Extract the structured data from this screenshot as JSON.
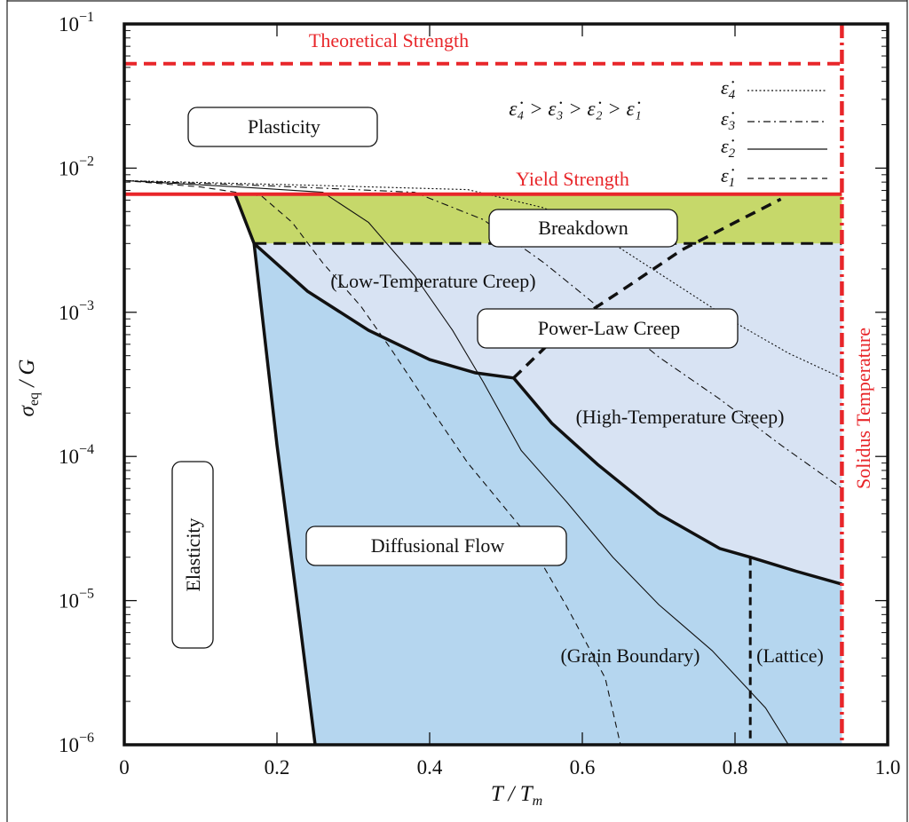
{
  "chart_data": {
    "type": "area",
    "title": "",
    "xlabel_main": "T / T",
    "xlabel_sub": "m",
    "ylabel_main": "σ",
    "ylabel_sub": "eq",
    "ylabel_tail": " / G",
    "x_scale": "linear",
    "y_scale": "log",
    "xlim": [
      0,
      1.0
    ],
    "ylim_exponents": [
      -6,
      -1
    ],
    "x_ticks": [
      0,
      0.2,
      0.4,
      0.6,
      0.8,
      1.0
    ],
    "x_tick_labels": [
      "0",
      "0.2",
      "0.4",
      "0.6",
      "0.8",
      "1.0"
    ],
    "y_ticks": [
      {
        "value": 1e-06,
        "base": "10",
        "exp": "−6"
      },
      {
        "value": 1e-05,
        "base": "10",
        "exp": "−5"
      },
      {
        "value": 0.0001,
        "base": "10",
        "exp": "−4"
      },
      {
        "value": 0.001,
        "base": "10",
        "exp": "−3"
      },
      {
        "value": 0.01,
        "base": "10",
        "exp": "−2"
      },
      {
        "value": 0.1,
        "base": "10",
        "exp": "−1"
      }
    ],
    "annotations": {
      "theoretical_strength": "Theoretical Strength",
      "yield_strength": "Yield Strength",
      "solidus_temperature": "Solidus Temperature",
      "plasticity": "Plasticity",
      "breakdown": "Breakdown",
      "low_temp_creep": "(Low-Temperature Creep)",
      "power_law_creep": "Power-Law Creep",
      "high_temp_creep": "(High-Temperature Creep)",
      "elasticity": "Elasticity",
      "diffusional_flow": "Diffusional Flow",
      "grain_boundary": "(Grain Boundary)",
      "lattice": "(Lattice)",
      "rate_ordering": "ε̇₄ > ε̇₃ > ε̇₂ > ε̇₁"
    },
    "legend": {
      "placement": "top-right",
      "entries": [
        {
          "symbol": "ε̇",
          "sub": "4",
          "style": "dotted"
        },
        {
          "symbol": "ε̇",
          "sub": "3",
          "style": "dash-dot"
        },
        {
          "symbol": "ε̇",
          "sub": "2",
          "style": "solid"
        },
        {
          "symbol": "ε̇",
          "sub": "1",
          "style": "dashed"
        }
      ]
    },
    "reference_lines": {
      "theoretical_strength_y": 0.053,
      "yield_strength_y": 0.0066,
      "breakdown_lower_y": 0.003,
      "solidus_x": 0.94
    },
    "boundaries": {
      "elastic_limit": [
        [
          0.145,
          0.0066
        ],
        [
          0.17,
          0.003
        ],
        [
          0.2,
          0.00012
        ],
        [
          0.23,
          7e-06
        ],
        [
          0.25,
          1e-06
        ]
      ],
      "low_temp_creep": [
        [
          0.17,
          0.003
        ],
        [
          0.24,
          0.0014
        ],
        [
          0.32,
          0.00075
        ],
        [
          0.4,
          0.00047
        ],
        [
          0.46,
          0.00038
        ],
        [
          0.51,
          0.00035
        ]
      ],
      "power_law_to_breakdown": [
        [
          0.51,
          0.00035
        ],
        [
          0.58,
          0.0008
        ],
        [
          0.65,
          0.0014
        ],
        [
          0.73,
          0.0027
        ],
        [
          0.8,
          0.0042
        ],
        [
          0.86,
          0.0061
        ]
      ],
      "high_temp_creep": [
        [
          0.51,
          0.00035
        ],
        [
          0.56,
          0.00017
        ],
        [
          0.62,
          8.8e-05
        ],
        [
          0.7,
          4e-05
        ],
        [
          0.78,
          2.3e-05
        ],
        [
          0.82,
          2e-05
        ],
        [
          0.88,
          1.6e-05
        ],
        [
          0.94,
          1.3e-05
        ]
      ],
      "gb_lattice_divider_x": 0.82
    },
    "series": [
      {
        "name": "ε̇1",
        "style": "dashed",
        "points": [
          [
            0.0,
            0.0082
          ],
          [
            0.1,
            0.0074
          ],
          [
            0.18,
            0.0064
          ],
          [
            0.22,
            0.0042
          ],
          [
            0.26,
            0.0022
          ],
          [
            0.31,
            0.0011
          ],
          [
            0.35,
            0.00055
          ],
          [
            0.4,
            0.00022
          ],
          [
            0.45,
            9e-05
          ],
          [
            0.52,
            3.2e-05
          ],
          [
            0.58,
            9e-06
          ],
          [
            0.63,
            2.9e-06
          ],
          [
            0.65,
            1e-06
          ]
        ]
      },
      {
        "name": "ε̇2",
        "style": "solid",
        "points": [
          [
            0.0,
            0.0082
          ],
          [
            0.15,
            0.0074
          ],
          [
            0.26,
            0.0068
          ],
          [
            0.32,
            0.0042
          ],
          [
            0.38,
            0.0018
          ],
          [
            0.43,
            0.00075
          ],
          [
            0.47,
            0.00033
          ],
          [
            0.52,
            0.00011
          ],
          [
            0.58,
            4.8e-05
          ],
          [
            0.64,
            2e-05
          ],
          [
            0.7,
            9.4e-06
          ],
          [
            0.77,
            4.5e-06
          ],
          [
            0.84,
            1.8e-06
          ],
          [
            0.87,
            1e-06
          ]
        ]
      },
      {
        "name": "ε̇3",
        "style": "dash-dot",
        "points": [
          [
            0.0,
            0.0082
          ],
          [
            0.2,
            0.0075
          ],
          [
            0.38,
            0.0068
          ],
          [
            0.47,
            0.0044
          ],
          [
            0.55,
            0.0022
          ],
          [
            0.62,
            0.0011
          ],
          [
            0.7,
            0.00049
          ],
          [
            0.78,
            0.00025
          ],
          [
            0.86,
            0.00012
          ],
          [
            0.94,
            6e-05
          ]
        ]
      },
      {
        "name": "ε̇4",
        "style": "dotted",
        "points": [
          [
            0.0,
            0.0082
          ],
          [
            0.25,
            0.0076
          ],
          [
            0.45,
            0.0071
          ],
          [
            0.55,
            0.0053
          ],
          [
            0.64,
            0.003
          ],
          [
            0.72,
            0.0016
          ],
          [
            0.8,
            0.00085
          ],
          [
            0.87,
            0.00052
          ],
          [
            0.94,
            0.00035
          ]
        ]
      }
    ],
    "colors": {
      "red": "#e8262a",
      "breakdown_fill": "#c6d86a",
      "light_blue": "#d8e3f3",
      "medium_blue": "#b5d6ef",
      "ink": "#111111"
    }
  }
}
